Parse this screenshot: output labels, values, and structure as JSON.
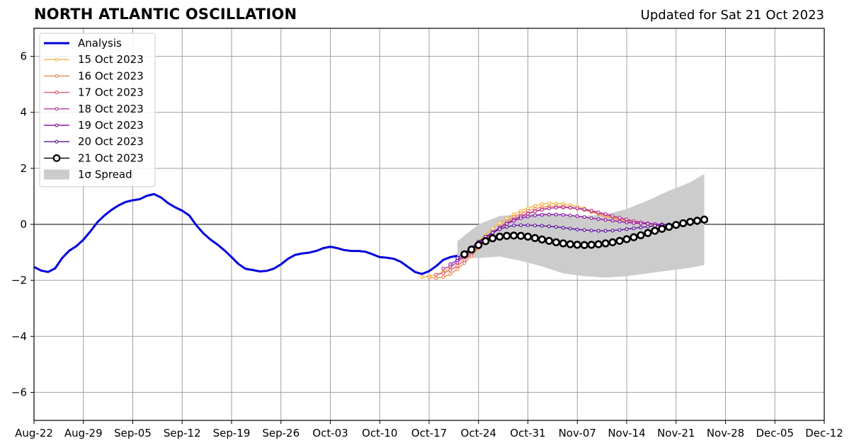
{
  "header": {
    "title": "NORTH ATLANTIC OSCILLATION",
    "updated": "Updated for Sat 21 Oct 2023"
  },
  "chart_data": {
    "type": "line",
    "title": "NORTH ATLANTIC OSCILLATION",
    "subtitle": "Updated for Sat 21 Oct 2023",
    "xlabel": "",
    "ylabel": "",
    "x_start": "2023-08-22",
    "xlim": [
      "2023-08-22",
      "2023-12-12"
    ],
    "ylim": [
      -7,
      7
    ],
    "x_ticks": [
      "Aug-22",
      "Aug-29",
      "Sep-05",
      "Sep-12",
      "Sep-19",
      "Sep-26",
      "Oct-03",
      "Oct-10",
      "Oct-17",
      "Oct-24",
      "Oct-31",
      "Nov-07",
      "Nov-14",
      "Nov-21",
      "Nov-28",
      "Dec-05",
      "Dec-12"
    ],
    "y_ticks": [
      -6,
      -4,
      -2,
      0,
      2,
      4,
      6
    ],
    "y_tick_labels": [
      "−6",
      "−4",
      "−2",
      "0",
      "2",
      "4",
      "6"
    ],
    "grid": true,
    "legend_position": "top-left",
    "spread": {
      "name": "1σ Spread",
      "color": "#cccccc",
      "x": [
        "2023-10-21",
        "2023-10-24",
        "2023-10-27",
        "2023-10-30",
        "2023-11-02",
        "2023-11-05",
        "2023-11-08",
        "2023-11-11",
        "2023-11-14",
        "2023-11-17",
        "2023-11-20",
        "2023-11-23",
        "2023-11-25"
      ],
      "upper": [
        -0.6,
        0.0,
        0.3,
        0.35,
        0.4,
        0.35,
        0.3,
        0.35,
        0.55,
        0.85,
        1.2,
        1.5,
        1.8
      ],
      "lower": [
        -1.2,
        -1.2,
        -1.15,
        -1.3,
        -1.5,
        -1.75,
        -1.85,
        -1.9,
        -1.85,
        -1.75,
        -1.65,
        -1.55,
        -1.45
      ]
    },
    "series": [
      {
        "name": "Analysis",
        "color": "#0000dd",
        "style": "line",
        "x": [
          "2023-08-22",
          "2023-08-23",
          "2023-08-24",
          "2023-08-25",
          "2023-08-26",
          "2023-08-27",
          "2023-08-28",
          "2023-08-29",
          "2023-08-30",
          "2023-08-31",
          "2023-09-01",
          "2023-09-02",
          "2023-09-03",
          "2023-09-04",
          "2023-09-05",
          "2023-09-06",
          "2023-09-07",
          "2023-09-08",
          "2023-09-09",
          "2023-09-10",
          "2023-09-11",
          "2023-09-12",
          "2023-09-13",
          "2023-09-14",
          "2023-09-15",
          "2023-09-16",
          "2023-09-17",
          "2023-09-18",
          "2023-09-19",
          "2023-09-20",
          "2023-09-21",
          "2023-09-22",
          "2023-09-23",
          "2023-09-24",
          "2023-09-25",
          "2023-09-26",
          "2023-09-27",
          "2023-09-28",
          "2023-09-29",
          "2023-09-30",
          "2023-10-01",
          "2023-10-02",
          "2023-10-03",
          "2023-10-04",
          "2023-10-05",
          "2023-10-06",
          "2023-10-07",
          "2023-10-08",
          "2023-10-09",
          "2023-10-10",
          "2023-10-11",
          "2023-10-12",
          "2023-10-13",
          "2023-10-14",
          "2023-10-15",
          "2023-10-16",
          "2023-10-17",
          "2023-10-18",
          "2023-10-19",
          "2023-10-20",
          "2023-10-21"
        ],
        "values": [
          -1.52,
          -1.65,
          -1.7,
          -1.57,
          -1.2,
          -0.94,
          -0.78,
          -0.55,
          -0.25,
          0.08,
          0.32,
          0.52,
          0.68,
          0.8,
          0.86,
          0.9,
          1.02,
          1.08,
          0.96,
          0.76,
          0.61,
          0.49,
          0.32,
          -0.03,
          -0.32,
          -0.54,
          -0.72,
          -0.93,
          -1.17,
          -1.42,
          -1.59,
          -1.63,
          -1.68,
          -1.66,
          -1.58,
          -1.43,
          -1.23,
          -1.09,
          -1.04,
          -1.01,
          -0.95,
          -0.85,
          -0.8,
          -0.85,
          -0.92,
          -0.95,
          -0.95,
          -0.98,
          -1.07,
          -1.17,
          -1.19,
          -1.23,
          -1.34,
          -1.52,
          -1.7,
          -1.77,
          -1.67,
          -1.49,
          -1.27,
          -1.17,
          -1.12
        ]
      },
      {
        "name": "15 Oct 2023",
        "color": "#f5b642",
        "style": "dotline",
        "x": [
          "2023-10-16",
          "2023-10-17",
          "2023-10-18",
          "2023-10-19",
          "2023-10-20",
          "2023-10-21",
          "2023-10-22",
          "2023-10-23",
          "2023-10-24",
          "2023-10-25",
          "2023-10-26",
          "2023-10-27",
          "2023-10-28",
          "2023-10-29",
          "2023-10-30",
          "2023-10-31",
          "2023-11-01",
          "2023-11-02",
          "2023-11-03",
          "2023-11-04",
          "2023-11-05",
          "2023-11-06",
          "2023-11-07",
          "2023-11-08",
          "2023-11-09",
          "2023-11-10",
          "2023-11-11",
          "2023-11-12",
          "2023-11-13",
          "2023-11-14",
          "2023-11-15",
          "2023-11-16",
          "2023-11-17",
          "2023-11-18",
          "2023-11-19",
          "2023-11-20"
        ],
        "values": [
          -1.88,
          -1.85,
          -1.8,
          -1.7,
          -1.55,
          -1.35,
          -1.1,
          -0.85,
          -0.6,
          -0.38,
          -0.15,
          0.05,
          0.22,
          0.36,
          0.48,
          0.58,
          0.66,
          0.72,
          0.75,
          0.75,
          0.73,
          0.69,
          0.64,
          0.57,
          0.49,
          0.41,
          0.33,
          0.25,
          0.18,
          0.12,
          0.07,
          0.03,
          0.0,
          -0.02,
          -0.03,
          -0.02
        ]
      },
      {
        "name": "16 Oct 2023",
        "color": "#ef8a50",
        "style": "dotline",
        "x": [
          "2023-10-17",
          "2023-10-18",
          "2023-10-19",
          "2023-10-20",
          "2023-10-21",
          "2023-10-22",
          "2023-10-23",
          "2023-10-24",
          "2023-10-25",
          "2023-10-26",
          "2023-10-27",
          "2023-10-28",
          "2023-10-29",
          "2023-10-30",
          "2023-10-31",
          "2023-11-01",
          "2023-11-02",
          "2023-11-03",
          "2023-11-04",
          "2023-11-05",
          "2023-11-06",
          "2023-11-07",
          "2023-11-08",
          "2023-11-09",
          "2023-11-10",
          "2023-11-11",
          "2023-11-12",
          "2023-11-13",
          "2023-11-14",
          "2023-11-15",
          "2023-11-16",
          "2023-11-17",
          "2023-11-18",
          "2023-11-19",
          "2023-11-20",
          "2023-11-21"
        ],
        "values": [
          -1.9,
          -1.92,
          -1.88,
          -1.78,
          -1.6,
          -1.38,
          -1.12,
          -0.85,
          -0.58,
          -0.32,
          -0.1,
          0.1,
          0.26,
          0.39,
          0.49,
          0.56,
          0.61,
          0.64,
          0.65,
          0.64,
          0.61,
          0.57,
          0.51,
          0.44,
          0.37,
          0.3,
          0.23,
          0.17,
          0.12,
          0.08,
          0.04,
          0.01,
          -0.01,
          -0.02,
          -0.02,
          -0.01
        ]
      },
      {
        "name": "17 Oct 2023",
        "color": "#e06070",
        "style": "dotline",
        "x": [
          "2023-10-18",
          "2023-10-19",
          "2023-10-20",
          "2023-10-21",
          "2023-10-22",
          "2023-10-23",
          "2023-10-24",
          "2023-10-25",
          "2023-10-26",
          "2023-10-27",
          "2023-10-28",
          "2023-10-29",
          "2023-10-30",
          "2023-10-31",
          "2023-11-01",
          "2023-11-02",
          "2023-11-03",
          "2023-11-04",
          "2023-11-05",
          "2023-11-06",
          "2023-11-07",
          "2023-11-08",
          "2023-11-09",
          "2023-11-10",
          "2023-11-11",
          "2023-11-12",
          "2023-11-13",
          "2023-11-14",
          "2023-11-15",
          "2023-11-16",
          "2023-11-17",
          "2023-11-18",
          "2023-11-19",
          "2023-11-20",
          "2023-11-21",
          "2023-11-22"
        ],
        "values": [
          -1.8,
          -1.74,
          -1.64,
          -1.48,
          -1.28,
          -1.04,
          -0.8,
          -0.56,
          -0.34,
          -0.14,
          0.04,
          0.18,
          0.3,
          0.4,
          0.48,
          0.54,
          0.58,
          0.6,
          0.6,
          0.59,
          0.56,
          0.52,
          0.47,
          0.41,
          0.35,
          0.28,
          0.22,
          0.16,
          0.11,
          0.07,
          0.03,
          0.01,
          -0.01,
          -0.02,
          -0.02,
          -0.01
        ]
      },
      {
        "name": "18 Oct 2023",
        "color": "#b83a9e",
        "style": "dotline",
        "x": [
          "2023-10-19",
          "2023-10-20",
          "2023-10-21",
          "2023-10-22",
          "2023-10-23",
          "2023-10-24",
          "2023-10-25",
          "2023-10-26",
          "2023-10-27",
          "2023-10-28",
          "2023-10-29",
          "2023-10-30",
          "2023-10-31",
          "2023-11-01",
          "2023-11-02",
          "2023-11-03",
          "2023-11-04",
          "2023-11-05",
          "2023-11-06",
          "2023-11-07",
          "2023-11-08",
          "2023-11-09",
          "2023-11-10",
          "2023-11-11",
          "2023-11-12",
          "2023-11-13",
          "2023-11-14",
          "2023-11-15",
          "2023-11-16",
          "2023-11-17",
          "2023-11-18",
          "2023-11-19",
          "2023-11-20",
          "2023-11-21",
          "2023-11-22",
          "2023-11-23"
        ],
        "values": [
          -1.58,
          -1.5,
          -1.36,
          -1.16,
          -0.94,
          -0.72,
          -0.5,
          -0.3,
          -0.12,
          0.04,
          0.17,
          0.28,
          0.38,
          0.46,
          0.52,
          0.57,
          0.6,
          0.61,
          0.6,
          0.58,
          0.54,
          0.49,
          0.43,
          0.37,
          0.3,
          0.24,
          0.18,
          0.12,
          0.08,
          0.04,
          0.01,
          -0.01,
          -0.02,
          -0.02,
          -0.01,
          0.0
        ]
      },
      {
        "name": "19 Oct 2023",
        "color": "#8a1aa8",
        "style": "dotline",
        "x": [
          "2023-10-20",
          "2023-10-21",
          "2023-10-22",
          "2023-10-23",
          "2023-10-24",
          "2023-10-25",
          "2023-10-26",
          "2023-10-27",
          "2023-10-28",
          "2023-10-29",
          "2023-10-30",
          "2023-10-31",
          "2023-11-01",
          "2023-11-02",
          "2023-11-03",
          "2023-11-04",
          "2023-11-05",
          "2023-11-06",
          "2023-11-07",
          "2023-11-08",
          "2023-11-09",
          "2023-11-10",
          "2023-11-11",
          "2023-11-12",
          "2023-11-13",
          "2023-11-14",
          "2023-11-15",
          "2023-11-16",
          "2023-11-17",
          "2023-11-18",
          "2023-11-19",
          "2023-11-20",
          "2023-11-21",
          "2023-11-22",
          "2023-11-23",
          "2023-11-24"
        ],
        "values": [
          -1.42,
          -1.28,
          -1.1,
          -0.88,
          -0.66,
          -0.46,
          -0.28,
          -0.12,
          0.02,
          0.13,
          0.22,
          0.28,
          0.32,
          0.34,
          0.35,
          0.35,
          0.34,
          0.32,
          0.29,
          0.26,
          0.22,
          0.19,
          0.16,
          0.13,
          0.1,
          0.07,
          0.05,
          0.03,
          0.02,
          0.01,
          0.0,
          0.0,
          0.01,
          0.02,
          0.03,
          0.04
        ]
      },
      {
        "name": "20 Oct 2023",
        "color": "#5a109c",
        "style": "dotline",
        "x": [
          "2023-10-21",
          "2023-10-22",
          "2023-10-23",
          "2023-10-24",
          "2023-10-25",
          "2023-10-26",
          "2023-10-27",
          "2023-10-28",
          "2023-10-29",
          "2023-10-30",
          "2023-10-31",
          "2023-11-01",
          "2023-11-02",
          "2023-11-03",
          "2023-11-04",
          "2023-11-05",
          "2023-11-06",
          "2023-11-07",
          "2023-11-08",
          "2023-11-09",
          "2023-11-10",
          "2023-11-11",
          "2023-11-12",
          "2023-11-13",
          "2023-11-14",
          "2023-11-15",
          "2023-11-16",
          "2023-11-17",
          "2023-11-18",
          "2023-11-19",
          "2023-11-20",
          "2023-11-21",
          "2023-11-22",
          "2023-11-23",
          "2023-11-24",
          "2023-11-25"
        ],
        "values": [
          -1.2,
          -1.02,
          -0.82,
          -0.62,
          -0.44,
          -0.29,
          -0.17,
          -0.09,
          -0.04,
          -0.03,
          -0.03,
          -0.04,
          -0.05,
          -0.07,
          -0.09,
          -0.12,
          -0.15,
          -0.18,
          -0.2,
          -0.22,
          -0.23,
          -0.23,
          -0.22,
          -0.2,
          -0.17,
          -0.14,
          -0.11,
          -0.08,
          -0.05,
          -0.03,
          -0.01,
          0.01,
          0.03,
          0.05,
          0.07,
          0.09
        ]
      },
      {
        "name": "21 Oct 2023",
        "color": "#000000",
        "style": "circles",
        "x": [
          "2023-10-22",
          "2023-10-23",
          "2023-10-24",
          "2023-10-25",
          "2023-10-26",
          "2023-10-27",
          "2023-10-28",
          "2023-10-29",
          "2023-10-30",
          "2023-10-31",
          "2023-11-01",
          "2023-11-02",
          "2023-11-03",
          "2023-11-04",
          "2023-11-05",
          "2023-11-06",
          "2023-11-07",
          "2023-11-08",
          "2023-11-09",
          "2023-11-10",
          "2023-11-11",
          "2023-11-12",
          "2023-11-13",
          "2023-11-14",
          "2023-11-15",
          "2023-11-16",
          "2023-11-17",
          "2023-11-18",
          "2023-11-19",
          "2023-11-20",
          "2023-11-21",
          "2023-11-22",
          "2023-11-23",
          "2023-11-24",
          "2023-11-25"
        ],
        "values": [
          -1.07,
          -0.9,
          -0.74,
          -0.6,
          -0.5,
          -0.44,
          -0.41,
          -0.4,
          -0.41,
          -0.44,
          -0.49,
          -0.54,
          -0.59,
          -0.64,
          -0.68,
          -0.71,
          -0.73,
          -0.74,
          -0.73,
          -0.71,
          -0.68,
          -0.64,
          -0.59,
          -0.53,
          -0.46,
          -0.39,
          -0.31,
          -0.23,
          -0.16,
          -0.09,
          -0.02,
          0.04,
          0.09,
          0.13,
          0.17
        ]
      }
    ]
  }
}
